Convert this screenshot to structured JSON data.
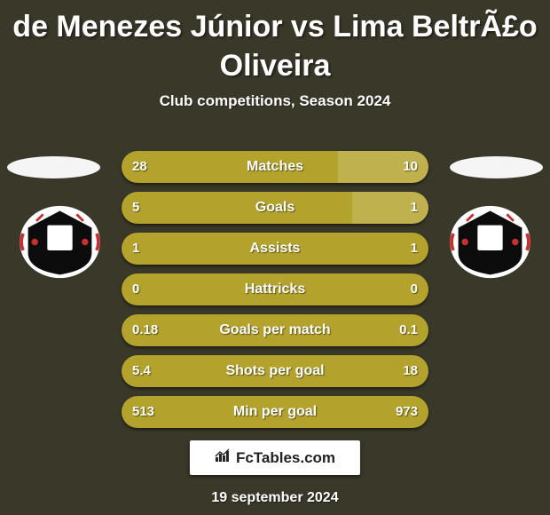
{
  "title_line1": "de Menezes Júnior vs Lima BeltrÃ£o",
  "title_line2": "Oliveira",
  "subtitle": "Club competitions, Season 2024",
  "branding_text": "FcTables.com",
  "date_text": "19 september 2024",
  "colors": {
    "background": "#3a3829",
    "bar_left": "#b3a22c",
    "bar_right_fill": "#b3a22c",
    "track": "#3a3829",
    "text": "#ffffff"
  },
  "rows": [
    {
      "label": "Matches",
      "left_val": "28",
      "right_val": "10",
      "left_pct": 70.5,
      "right_pct": 10.0
    },
    {
      "label": "Goals",
      "left_val": "5",
      "right_val": "1",
      "left_pct": 75.0,
      "right_pct": 0.0
    },
    {
      "label": "Assists",
      "left_val": "1",
      "right_val": "1",
      "left_pct": 0.0,
      "right_pct": 0.0
    },
    {
      "label": "Hattricks",
      "left_val": "0",
      "right_val": "0",
      "left_pct": 0.0,
      "right_pct": 0.0
    },
    {
      "label": "Goals per match",
      "left_val": "0.18",
      "right_val": "0.1",
      "left_pct": 0.0,
      "right_pct": 0.0
    },
    {
      "label": "Shots per goal",
      "left_val": "5.4",
      "right_val": "18",
      "left_pct": 0.0,
      "right_pct": 0.0
    },
    {
      "label": "Min per goal",
      "left_val": "513",
      "right_val": "973",
      "left_pct": 0.0,
      "right_pct": 0.0
    }
  ],
  "row_style": {
    "track_height": 36,
    "track_radius": 18,
    "label_fontsize": 16,
    "value_fontsize": 15,
    "row_gap": 10,
    "row_width": 346
  }
}
